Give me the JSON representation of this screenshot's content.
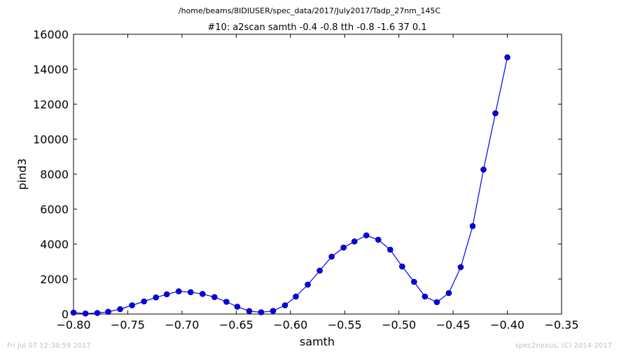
{
  "figure": {
    "suptitle": "/home/beams/8IDIUSER/spec_data/2017/July2017/Tadp_27nm_145C",
    "footer_left": "Fri Jul 07 12:38:59 2017",
    "footer_right": "spec2nexus, (C) 2014-2017"
  },
  "chart_data": {
    "type": "line",
    "title": "#10: a2scan  samth -0.4 -0.8  tth -0.8 -1.6  37 0.1",
    "xlabel": "samth",
    "ylabel": "pind3",
    "xlim": [
      -0.8,
      -0.35
    ],
    "ylim": [
      0,
      16000
    ],
    "xticks": [
      -0.8,
      -0.75,
      -0.7,
      -0.65,
      -0.6,
      -0.55,
      -0.5,
      -0.45,
      -0.4,
      -0.35
    ],
    "xtick_labels": [
      "−0.80",
      "−0.75",
      "−0.70",
      "−0.65",
      "−0.60",
      "−0.55",
      "−0.50",
      "−0.45",
      "−0.40",
      "−0.35"
    ],
    "yticks": [
      0,
      2000,
      4000,
      6000,
      8000,
      10000,
      12000,
      14000,
      16000
    ],
    "ytick_labels": [
      "0",
      "2000",
      "4000",
      "6000",
      "8000",
      "10000",
      "12000",
      "14000",
      "16000"
    ],
    "grid": false,
    "color": "#0000ff",
    "series": [
      {
        "x": [
          -0.8,
          -0.789,
          -0.778,
          -0.768,
          -0.757,
          -0.746,
          -0.735,
          -0.724,
          -0.714,
          -0.703,
          -0.692,
          -0.681,
          -0.67,
          -0.659,
          -0.649,
          -0.638,
          -0.627,
          -0.616,
          -0.605,
          -0.595,
          -0.584,
          -0.573,
          -0.562,
          -0.551,
          -0.541,
          -0.53,
          -0.519,
          -0.508,
          -0.497,
          -0.486,
          -0.476,
          -0.465,
          -0.454,
          -0.443,
          -0.432,
          -0.422,
          -0.411,
          -0.4
        ],
        "y": [
          80,
          30,
          60,
          130,
          280,
          500,
          720,
          950,
          1130,
          1300,
          1250,
          1150,
          970,
          700,
          420,
          170,
          100,
          180,
          500,
          1000,
          1680,
          2480,
          3280,
          3800,
          4150,
          4500,
          4250,
          3680,
          2720,
          1840,
          1000,
          680,
          1200,
          2680,
          5030,
          8260,
          11480,
          14680
        ]
      }
    ]
  }
}
